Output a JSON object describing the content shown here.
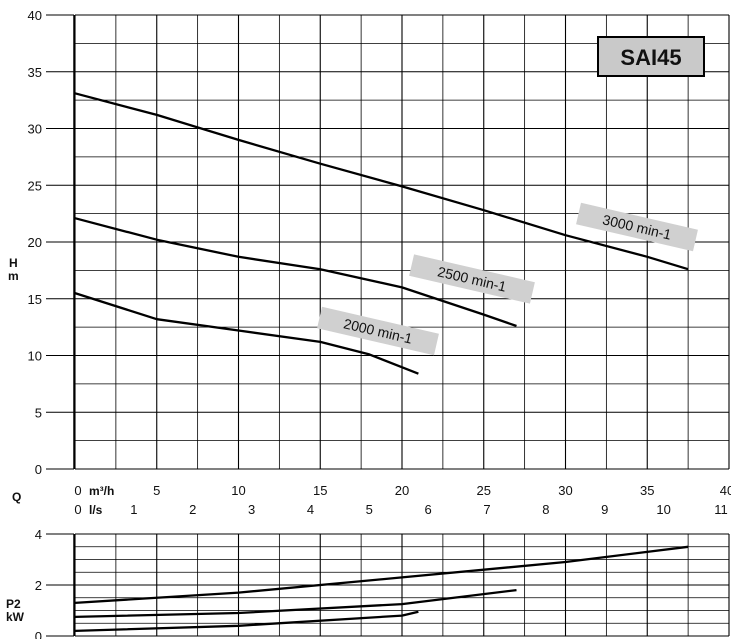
{
  "chart_data": [
    {
      "type": "line",
      "badge": "SAI45",
      "ylabel": "H",
      "yunit": "m",
      "xlabel": "Q",
      "xunit_primary": "m³/h",
      "xunit_secondary": "l/s",
      "xlim": [
        0,
        40
      ],
      "ylim": [
        0,
        40
      ],
      "grid": true,
      "x_ticks": [
        "0",
        "5",
        "10",
        "15",
        "20",
        "25",
        "30",
        "35",
        "40"
      ],
      "x2_ticks": [
        "0",
        "1",
        "2",
        "3",
        "4",
        "5",
        "6",
        "7",
        "8",
        "9",
        "10",
        "11"
      ],
      "y_ticks": [
        "0",
        "5",
        "10",
        "15",
        "20",
        "25",
        "30",
        "35",
        "40"
      ],
      "series": [
        {
          "name": "3000 min-1",
          "x": [
            0,
            5,
            10,
            15,
            20,
            25,
            30,
            35,
            37.5
          ],
          "y": [
            33.1,
            31.2,
            29.0,
            26.9,
            24.9,
            22.8,
            20.6,
            18.7,
            17.6
          ]
        },
        {
          "name": "2500 min-1",
          "x": [
            0,
            5,
            10,
            15,
            20,
            25,
            27
          ],
          "y": [
            22.1,
            20.2,
            18.7,
            17.6,
            16.0,
            13.6,
            12.6
          ]
        },
        {
          "name": "2000 min-1",
          "x": [
            0,
            5,
            10,
            15,
            18,
            21
          ],
          "y": [
            15.5,
            13.2,
            12.2,
            11.2,
            10.1,
            8.4
          ]
        }
      ]
    },
    {
      "type": "line",
      "ylabel": "P2",
      "yunit": "kW",
      "xlim": [
        0,
        40
      ],
      "ylim": [
        0,
        4
      ],
      "grid": true,
      "y_ticks": [
        "0",
        "2",
        "4"
      ],
      "series": [
        {
          "x": [
            0,
            10,
            20,
            30,
            37.5
          ],
          "y": [
            1.3,
            1.7,
            2.3,
            2.9,
            3.5
          ]
        },
        {
          "x": [
            0,
            10,
            20,
            27
          ],
          "y": [
            0.75,
            0.9,
            1.25,
            1.8
          ]
        },
        {
          "x": [
            0,
            10,
            20,
            21
          ],
          "y": [
            0.2,
            0.4,
            0.8,
            0.95
          ]
        }
      ]
    }
  ]
}
